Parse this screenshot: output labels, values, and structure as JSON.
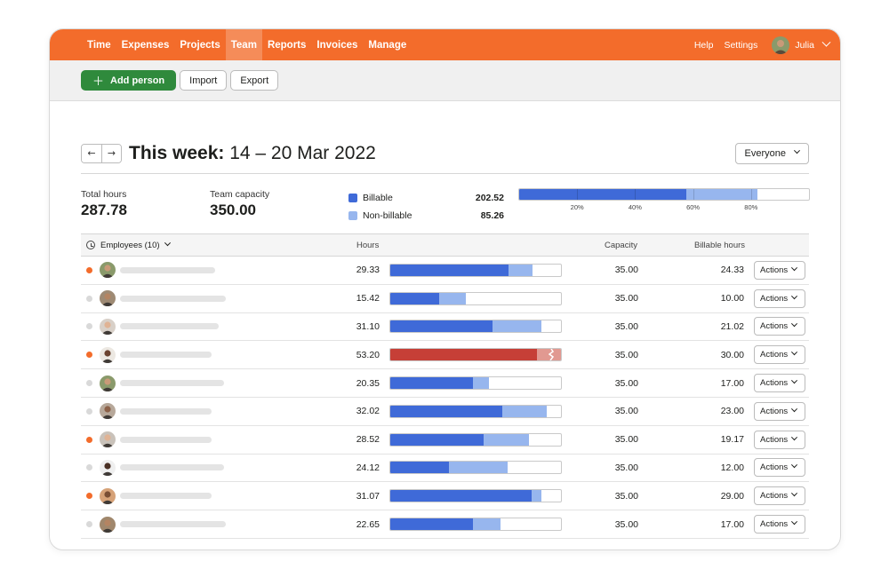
{
  "nav": {
    "items": [
      "Time",
      "Expenses",
      "Projects",
      "Team",
      "Reports",
      "Invoices",
      "Manage"
    ],
    "active_index": 3,
    "help": "Help",
    "settings": "Settings",
    "user": "Julia"
  },
  "toolbar": {
    "add_person": "Add person",
    "import": "Import",
    "export": "Export"
  },
  "week": {
    "prefix": "This week:",
    "range": "14 – 20 Mar 2022",
    "filter": "Everyone"
  },
  "summary": {
    "total_hours_label": "Total hours",
    "total_hours": "287.78",
    "capacity_label": "Team capacity",
    "capacity": "350.00",
    "billable_label": "Billable",
    "billable": "202.52",
    "nonbillable_label": "Non-billable",
    "nonbillable": "85.26",
    "billable_fraction": 0.578,
    "nonbillable_fraction": 0.244,
    "pct_labels": [
      "20%",
      "40%",
      "60%",
      "80%"
    ]
  },
  "colors": {
    "brand": "#f36c2b",
    "billable": "#3f6ad8",
    "nonbillable": "#97b6ee",
    "over": "#c63f37",
    "over_light": "#e19991",
    "active_dot": "#f36c2b",
    "inactive_dot": "#d9d9d9",
    "primary_button": "#2f8a3c"
  },
  "table": {
    "employees_label": "Employees (10)",
    "col_hours": "Hours",
    "col_capacity": "Capacity",
    "col_billable": "Billable hours",
    "actions_label": "Actions",
    "rows": [
      {
        "hours": "29.33",
        "capacity": "35.00",
        "billable": "24.33",
        "billable_frac": 0.695,
        "nonbillable_frac": 0.143,
        "active": true,
        "over": false
      },
      {
        "hours": "15.42",
        "capacity": "35.00",
        "billable": "10.00",
        "billable_frac": 0.285,
        "nonbillable_frac": 0.155,
        "active": false,
        "over": false
      },
      {
        "hours": "31.10",
        "capacity": "35.00",
        "billable": "21.02",
        "billable_frac": 0.6,
        "nonbillable_frac": 0.288,
        "active": false,
        "over": false
      },
      {
        "hours": "53.20",
        "capacity": "35.00",
        "billable": "30.00",
        "billable_frac": 0.857,
        "nonbillable_frac": 0.143,
        "active": true,
        "over": true
      },
      {
        "hours": "20.35",
        "capacity": "35.00",
        "billable": "17.00",
        "billable_frac": 0.486,
        "nonbillable_frac": 0.096,
        "active": false,
        "over": false
      },
      {
        "hours": "32.02",
        "capacity": "35.00",
        "billable": "23.00",
        "billable_frac": 0.657,
        "nonbillable_frac": 0.258,
        "active": false,
        "over": false
      },
      {
        "hours": "28.52",
        "capacity": "35.00",
        "billable": "19.17",
        "billable_frac": 0.548,
        "nonbillable_frac": 0.267,
        "active": true,
        "over": false
      },
      {
        "hours": "24.12",
        "capacity": "35.00",
        "billable": "12.00",
        "billable_frac": 0.343,
        "nonbillable_frac": 0.346,
        "active": false,
        "over": false
      },
      {
        "hours": "31.07",
        "capacity": "35.00",
        "billable": "29.00",
        "billable_frac": 0.829,
        "nonbillable_frac": 0.059,
        "active": true,
        "over": false
      },
      {
        "hours": "22.65",
        "capacity": "35.00",
        "billable": "17.00",
        "billable_frac": 0.486,
        "nonbillable_frac": 0.161,
        "active": false,
        "over": false
      }
    ]
  }
}
